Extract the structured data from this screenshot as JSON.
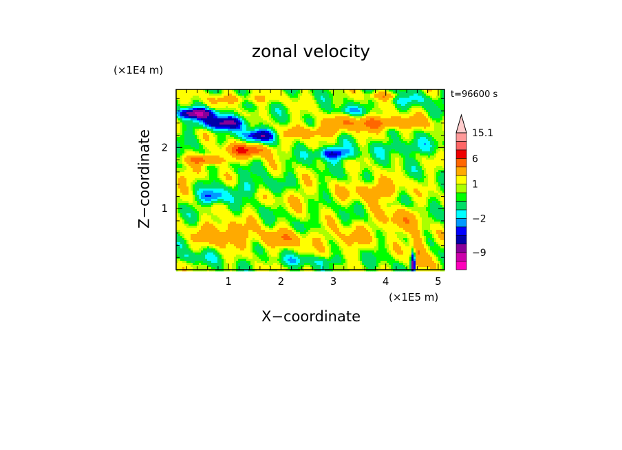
{
  "chart_data": {
    "type": "heatmap",
    "title": "zonal velocity",
    "xlabel": "X−coordinate",
    "ylabel": "Z−coordinate",
    "x_unit_label": "(×1E5 m)",
    "y_unit_label": "(×1E4 m)",
    "time_label": "t=96600 s",
    "xlim": [
      0,
      5.12
    ],
    "ylim": [
      0,
      2.95
    ],
    "x_ticks": [
      1,
      2,
      3,
      4,
      5
    ],
    "y_ticks": [
      1,
      2
    ],
    "colorbar": {
      "tick_labels": [
        {
          "value": 15.1,
          "label": "15.1"
        },
        {
          "value": 6,
          "label": "6"
        },
        {
          "value": 1,
          "label": "1"
        },
        {
          "value": -2,
          "label": "−2"
        },
        {
          "value": -9,
          "label": "−9"
        }
      ],
      "levels": [
        {
          "min": -15,
          "max": -12,
          "color": "#ff00bb"
        },
        {
          "min": -12,
          "max": -9,
          "color": "#cc00aa"
        },
        {
          "min": -9,
          "max": -6,
          "color": "#880099"
        },
        {
          "min": -6,
          "max": -4,
          "color": "#0000aa"
        },
        {
          "min": -4,
          "max": -3,
          "color": "#0000ff"
        },
        {
          "min": -3,
          "max": -2,
          "color": "#0099ff"
        },
        {
          "min": -2,
          "max": -1,
          "color": "#00ffff"
        },
        {
          "min": -1,
          "max": 0,
          "color": "#00dd66"
        },
        {
          "min": 0,
          "max": 0.5,
          "color": "#00ff00"
        },
        {
          "min": 0.5,
          "max": 1,
          "color": "#aaff00"
        },
        {
          "min": 1,
          "max": 2,
          "color": "#ffff00"
        },
        {
          "min": 2,
          "max": 4,
          "color": "#ffaa00"
        },
        {
          "min": 4,
          "max": 6,
          "color": "#ff6600"
        },
        {
          "min": 6,
          "max": 9,
          "color": "#ee0000"
        },
        {
          "min": 9,
          "max": 12,
          "color": "#ff6666"
        },
        {
          "min": 12,
          "max": 15.1,
          "color": "#ff9999"
        },
        {
          "min": 15.1,
          "max": 18,
          "color": "#ffcccc"
        }
      ]
    },
    "field_features": [
      {
        "x": 0.4,
        "z": 2.55,
        "sx": 0.35,
        "sz": 0.08,
        "amp": -9
      },
      {
        "x": 0.9,
        "z": 2.4,
        "sx": 0.4,
        "sz": 0.1,
        "amp": -7
      },
      {
        "x": 1.6,
        "z": 2.2,
        "sx": 0.3,
        "sz": 0.1,
        "amp": -6
      },
      {
        "x": 1.35,
        "z": 1.95,
        "sx": 0.45,
        "sz": 0.1,
        "amp": 5
      },
      {
        "x": 0.6,
        "z": 1.8,
        "sx": 0.4,
        "sz": 0.07,
        "amp": 4
      },
      {
        "x": 0.7,
        "z": 1.2,
        "sx": 0.25,
        "sz": 0.12,
        "amp": -4
      },
      {
        "x": 0.2,
        "z": 1.5,
        "sx": 0.3,
        "sz": 0.15,
        "amp": 1.5
      },
      {
        "x": 3.0,
        "z": 1.9,
        "sx": 0.35,
        "sz": 0.1,
        "amp": -5
      },
      {
        "x": 3.3,
        "z": 2.6,
        "sx": 0.3,
        "sz": 0.08,
        "amp": -2
      },
      {
        "x": 3.8,
        "z": 2.4,
        "sx": 0.9,
        "sz": 0.11,
        "amp": 4
      },
      {
        "x": 2.6,
        "z": 2.25,
        "sx": 0.5,
        "sz": 0.1,
        "amp": 3
      },
      {
        "x": 4.4,
        "z": 2.0,
        "sx": 0.5,
        "sz": 0.12,
        "amp": -2
      },
      {
        "x": 4.5,
        "z": 2.8,
        "sx": 0.5,
        "sz": 0.12,
        "amp": -1.5
      },
      {
        "x": 3.8,
        "z": 1.3,
        "sx": 0.5,
        "sz": 0.15,
        "amp": 3
      },
      {
        "x": 1.5,
        "z": 1.35,
        "sx": 0.5,
        "sz": 0.12,
        "amp": -1.5
      },
      {
        "x": 2.3,
        "z": 1.2,
        "sx": 0.5,
        "sz": 0.2,
        "amp": 1
      },
      {
        "x": 0.9,
        "z": 0.6,
        "sx": 0.5,
        "sz": 0.2,
        "amp": 3
      },
      {
        "x": 2.0,
        "z": 0.5,
        "sx": 0.6,
        "sz": 0.15,
        "amp": 2.5
      },
      {
        "x": 3.3,
        "z": 0.5,
        "sx": 0.4,
        "sz": 0.2,
        "amp": 2
      },
      {
        "x": 4.2,
        "z": 0.8,
        "sx": 0.4,
        "sz": 0.2,
        "amp": 2.5
      },
      {
        "x": 0.3,
        "z": 0.2,
        "sx": 0.4,
        "sz": 0.1,
        "amp": -1.5
      },
      {
        "x": 2.5,
        "z": 0.15,
        "sx": 0.8,
        "sz": 0.08,
        "amp": -1.5
      },
      {
        "x": 4.6,
        "z": 0.3,
        "sx": 0.15,
        "sz": 0.3,
        "amp": 4
      },
      {
        "x": 4.52,
        "z": 0.1,
        "sx": 0.04,
        "sz": 0.2,
        "amp": -10
      },
      {
        "x": 4.0,
        "z": 2.85,
        "sx": 0.3,
        "sz": 0.06,
        "amp": 3
      },
      {
        "x": 1.2,
        "z": 2.8,
        "sx": 0.6,
        "sz": 0.08,
        "amp": 2
      }
    ]
  }
}
